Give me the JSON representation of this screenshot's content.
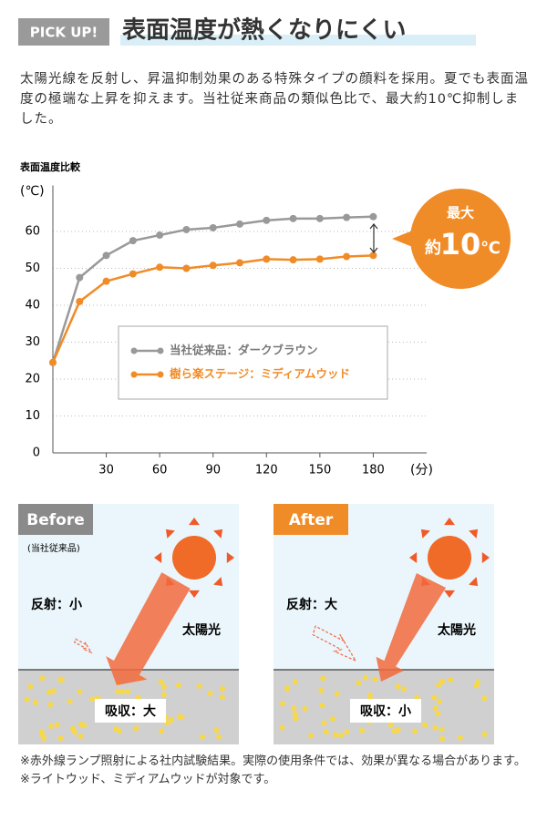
{
  "header": {
    "badge": "PICK UP!",
    "title": "表面温度が熱くなりにくい"
  },
  "intro": "太陽光線を反射し、昇温抑制効果のある特殊タイプの顔料を採用。夏でも表面温度の極端な上昇を抑えます。当社従来商品の類似色比で、最大約10℃抑制しました。",
  "chart_data": {
    "type": "line",
    "title": "表面温度比較",
    "y_label": "(℃)",
    "x_label": "(分)",
    "x": [
      0,
      15,
      30,
      45,
      60,
      75,
      90,
      105,
      120,
      135,
      150,
      165,
      180
    ],
    "series": [
      {
        "name": "当社従来品：ダークブラウン",
        "color": "#999999",
        "values": [
          24.5,
          47.5,
          53.5,
          57.5,
          59,
          60.5,
          61,
          62,
          63,
          63.5,
          63.5,
          63.8,
          64
        ]
      },
      {
        "name": "樹ら楽ステージ：ミディアムウッド",
        "color": "#f08c28",
        "values": [
          24.5,
          41,
          46.5,
          48.5,
          50.3,
          50,
          50.8,
          51.5,
          52.5,
          52.3,
          52.5,
          53.2,
          53.5
        ]
      }
    ],
    "xlim": [
      0,
      210
    ],
    "xticks": [
      30,
      60,
      90,
      120,
      150,
      180
    ],
    "ylim": [
      0,
      70
    ],
    "yticks": [
      0,
      10,
      20,
      30,
      40,
      50,
      60
    ],
    "grid": true,
    "annotation": {
      "top": "最大",
      "prefix": "約",
      "number": "10",
      "unit": "℃"
    }
  },
  "panels": [
    {
      "tab": "Before",
      "sub": "(当社従来品)",
      "reflect": "反射：小",
      "sun": "太陽光",
      "absorb": "吸収：大"
    },
    {
      "tab": "After",
      "reflect": "反射：大",
      "sun": "太陽光",
      "absorb": "吸収：小"
    }
  ],
  "notes": [
    "※赤外線ランプ照射による社内試験結果。実際の使用条件では、効果が異なる場合があります。",
    "※ライトウッド、ミディアムウッドが対象です。"
  ]
}
